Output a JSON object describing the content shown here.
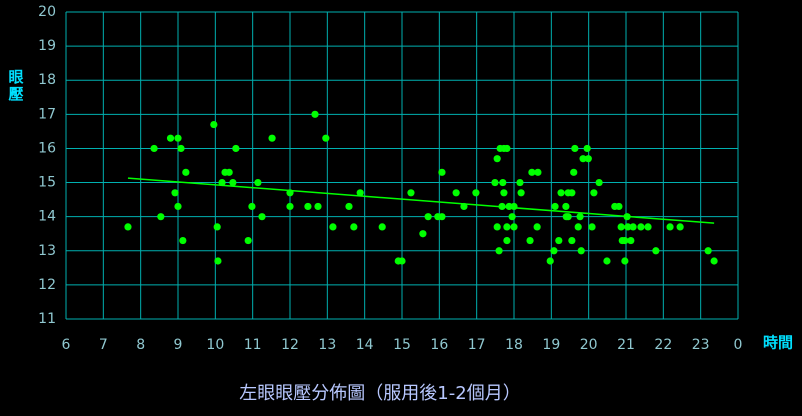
{
  "chart_data": {
    "type": "scatter",
    "title": "左眼眼壓分佈圖（服用後1-2個月）",
    "y_label": "眼壓",
    "x_label": "時間",
    "x": [
      7.66,
      8.36,
      8.54,
      8.8,
      9.0,
      8.92,
      9.0,
      9.08,
      9.21,
      9.13,
      9.96,
      10.05,
      10.07,
      10.18,
      10.26,
      10.37,
      10.47,
      10.55,
      10.88,
      10.98,
      11.14,
      11.25,
      11.52,
      12.0,
      12.0,
      12.48,
      12.67,
      12.75,
      12.96,
      13.15,
      13.58,
      13.71,
      13.88,
      14.47,
      14.9,
      15.0,
      15.24,
      15.56,
      15.7,
      15.96,
      16.07,
      16.07,
      16.45,
      16.66,
      16.98,
      17.49,
      17.55,
      17.55,
      17.6,
      17.63,
      17.73,
      17.81,
      17.68,
      17.7,
      17.73,
      17.81,
      17.81,
      17.87,
      17.95,
      18.0,
      18.0,
      18.16,
      18.19,
      18.43,
      18.48,
      18.64,
      18.62,
      18.97,
      19.07,
      19.1,
      19.2,
      19.26,
      19.39,
      19.4,
      19.45,
      19.45,
      19.55,
      19.55,
      19.6,
      19.63,
      19.72,
      19.77,
      19.8,
      19.85,
      19.99,
      19.96,
      20.09,
      20.14,
      20.28,
      20.49,
      20.7,
      20.81,
      20.87,
      20.9,
      20.97,
      20.97,
      21.03,
      21.05,
      21.13,
      21.19,
      21.4,
      21.59,
      21.8,
      22.18,
      22.45,
      23.2,
      23.36
    ],
    "values": [
      13.7,
      16.0,
      14.0,
      16.3,
      16.3,
      14.7,
      14.3,
      16.0,
      15.3,
      13.3,
      16.7,
      13.7,
      12.7,
      15.0,
      15.3,
      15.3,
      15.0,
      16.0,
      13.3,
      14.3,
      15.0,
      14.0,
      16.3,
      14.7,
      14.3,
      14.3,
      17.0,
      14.3,
      16.3,
      13.7,
      14.3,
      13.7,
      14.7,
      13.7,
      12.7,
      12.7,
      14.7,
      13.5,
      14.0,
      14.0,
      14.0,
      15.3,
      14.7,
      14.3,
      14.7,
      15.0,
      15.7,
      13.7,
      13.0,
      16.0,
      16.0,
      16.0,
      14.3,
      15.0,
      14.7,
      13.3,
      13.7,
      14.3,
      14.0,
      13.7,
      14.3,
      15.0,
      14.7,
      13.3,
      15.3,
      15.3,
      13.7,
      12.7,
      13.0,
      14.3,
      13.3,
      14.7,
      14.3,
      14.0,
      14.0,
      14.7,
      13.3,
      14.7,
      15.3,
      16.0,
      13.7,
      14.0,
      13.0,
      15.7,
      15.7,
      16.0,
      13.7,
      14.7,
      15.0,
      12.7,
      14.3,
      14.3,
      13.7,
      13.3,
      13.3,
      12.7,
      14.0,
      13.7,
      13.3,
      13.7,
      13.7,
      13.7,
      13.0,
      13.7,
      13.7,
      13.0,
      12.7
    ],
    "color": "#00ff00",
    "trendline": {
      "x": [
        7.66,
        23.36
      ],
      "values": [
        15.13,
        13.81
      ],
      "color": "#00ff00"
    },
    "xlim": [
      6,
      24
    ],
    "xticks": [
      6,
      7,
      8,
      9,
      10,
      11,
      12,
      13,
      14,
      15,
      16,
      17,
      18,
      19,
      20,
      21,
      22,
      23,
      {
        "value": 24,
        "label": "0"
      }
    ],
    "ylim": [
      11,
      20
    ],
    "yticks": [
      11,
      12,
      13,
      14,
      15,
      16,
      17,
      18,
      19,
      20
    ],
    "grid": true,
    "grid_color": "#00b0b0"
  }
}
